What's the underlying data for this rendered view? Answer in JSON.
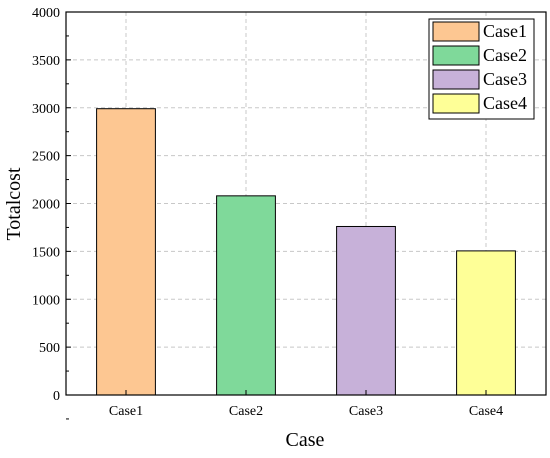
{
  "chart_data": {
    "type": "bar",
    "title": "",
    "xlabel": "Case",
    "ylabel": "Totalcost",
    "categories": [
      "Case1",
      "Case2",
      "Case3",
      "Case4"
    ],
    "values": [
      2990,
      2080,
      1760,
      1505
    ],
    "colors": [
      "#fdc792",
      "#7fd99a",
      "#c7b1d9",
      "#feff97"
    ],
    "ylim": [
      0,
      4000
    ],
    "yticks": [
      0,
      500,
      1000,
      1500,
      2000,
      2500,
      3000,
      3500,
      4000
    ],
    "grid": true,
    "legend": {
      "placement": "top-right",
      "entries": [
        "Case1",
        "Case2",
        "Case3",
        "Case4"
      ]
    }
  }
}
